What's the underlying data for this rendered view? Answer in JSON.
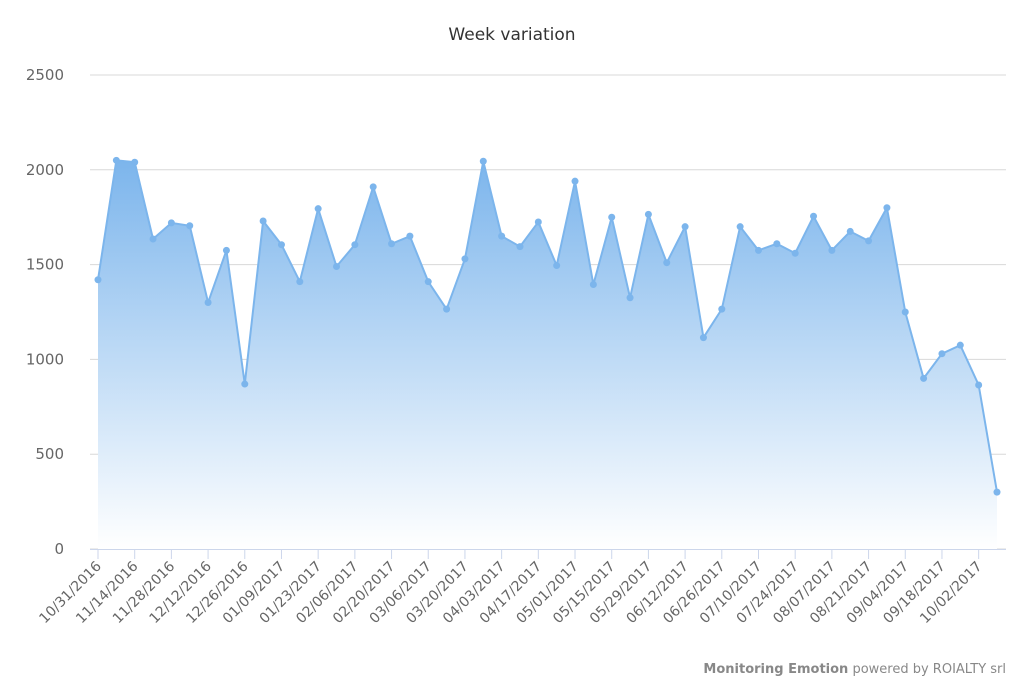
{
  "chart_data": {
    "type": "area",
    "title": "Week variation",
    "categories": [
      "10/31/2016",
      null,
      "11/14/2016",
      null,
      "11/28/2016",
      null,
      "12/12/2016",
      null,
      "12/26/2016",
      null,
      "01/09/2017",
      null,
      "01/23/2017",
      null,
      "02/06/2017",
      null,
      "02/20/2017",
      null,
      "03/06/2017",
      null,
      "03/20/2017",
      null,
      "04/03/2017",
      null,
      "04/17/2017",
      null,
      "05/01/2017",
      null,
      "05/15/2017",
      null,
      "05/29/2017",
      null,
      "06/12/2017",
      null,
      "06/26/2017",
      null,
      "07/10/2017",
      null,
      "07/24/2017",
      null,
      "08/07/2017",
      null,
      "08/21/2017",
      null,
      "09/04/2017",
      null,
      "09/18/2017",
      null,
      "10/02/2017",
      null
    ],
    "values": [
      1420,
      2050,
      2040,
      1635,
      1720,
      1705,
      1300,
      1575,
      870,
      1730,
      1605,
      1410,
      1795,
      1490,
      1605,
      1910,
      1610,
      1650,
      1410,
      1265,
      1530,
      2045,
      1650,
      1595,
      1725,
      1495,
      1940,
      1395,
      1750,
      1325,
      1765,
      1510,
      1700,
      1115,
      1265,
      1700,
      1575,
      1610,
      1560,
      1755,
      1575,
      1675,
      1625,
      1800,
      1250,
      900,
      1030,
      1075,
      865,
      300
    ],
    "color": "#7cb5ec",
    "ylim": [
      0,
      2500
    ],
    "yticks": [
      0,
      500,
      1000,
      1500,
      2000,
      2500
    ],
    "grid": true,
    "credits": {
      "brand": "Monitoring Emotion",
      "text": "powered by ROIALTY srl"
    }
  }
}
